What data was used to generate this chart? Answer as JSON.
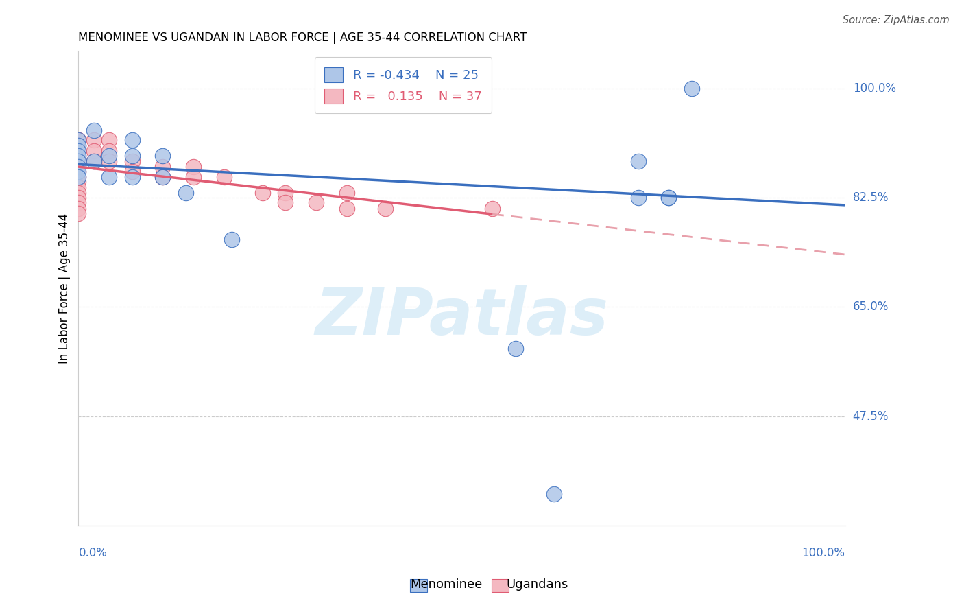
{
  "title": "MENOMINEE VS UGANDAN IN LABOR FORCE | AGE 35-44 CORRELATION CHART",
  "source": "Source: ZipAtlas.com",
  "ylabel": "In Labor Force | Age 35-44",
  "ytick_labels": [
    "100.0%",
    "82.5%",
    "65.0%",
    "47.5%"
  ],
  "ytick_values": [
    1.0,
    0.825,
    0.65,
    0.475
  ],
  "xlim": [
    0.0,
    1.0
  ],
  "ylim": [
    0.3,
    1.06
  ],
  "legend_r_menominee": "-0.434",
  "legend_n_menominee": "25",
  "legend_r_ugandan": "0.135",
  "legend_n_ugandan": "37",
  "menominee_color": "#aec6e8",
  "ugandan_color": "#f4b8c1",
  "trendline_menominee_color": "#3a6fbf",
  "trendline_ugandan_color": "#e05c73",
  "trendline_ugandan_dashed_color": "#e8a0ab",
  "watermark_color": "#ddeef8",
  "menominee_x": [
    0.0,
    0.0,
    0.0,
    0.0,
    0.0,
    0.0,
    0.0,
    0.0,
    0.02,
    0.02,
    0.04,
    0.04,
    0.07,
    0.07,
    0.07,
    0.11,
    0.11,
    0.14,
    0.2,
    0.57,
    0.73,
    0.73,
    0.77,
    0.77,
    0.8
  ],
  "menominee_y": [
    0.917,
    0.908,
    0.9,
    0.892,
    0.883,
    0.875,
    0.867,
    0.858,
    0.933,
    0.883,
    0.892,
    0.858,
    0.917,
    0.892,
    0.858,
    0.892,
    0.858,
    0.833,
    0.758,
    0.583,
    0.883,
    0.825,
    0.825,
    0.825,
    1.0
  ],
  "ugandan_x": [
    0.0,
    0.0,
    0.0,
    0.0,
    0.0,
    0.0,
    0.0,
    0.0,
    0.0,
    0.0,
    0.0,
    0.0,
    0.0,
    0.0,
    0.0,
    0.0,
    0.02,
    0.02,
    0.02,
    0.04,
    0.04,
    0.04,
    0.07,
    0.07,
    0.11,
    0.11,
    0.15,
    0.15,
    0.19,
    0.24,
    0.27,
    0.27,
    0.31,
    0.35,
    0.35,
    0.4,
    0.54
  ],
  "ugandan_y": [
    0.917,
    0.917,
    0.908,
    0.9,
    0.892,
    0.883,
    0.875,
    0.867,
    0.858,
    0.85,
    0.842,
    0.833,
    0.825,
    0.817,
    0.808,
    0.8,
    0.917,
    0.9,
    0.883,
    0.917,
    0.9,
    0.883,
    0.883,
    0.867,
    0.875,
    0.858,
    0.875,
    0.858,
    0.858,
    0.833,
    0.833,
    0.817,
    0.817,
    0.833,
    0.808,
    0.808,
    0.808
  ]
}
